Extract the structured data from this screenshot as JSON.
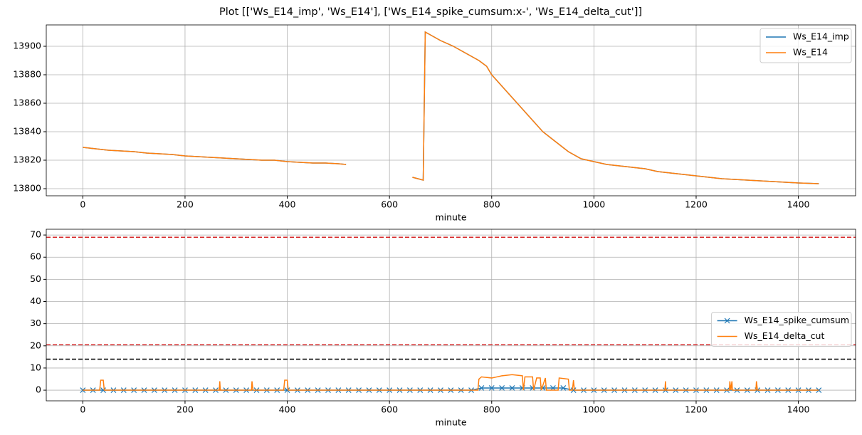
{
  "title": "Plot [['Ws_E14_imp', 'Ws_E14'], ['Ws_E14_spike_cumsum:x-', 'Ws_E14_delta_cut']]",
  "chart_data": [
    {
      "type": "line",
      "xlabel": "minute",
      "xlim": [
        -71.5,
        1512
      ],
      "xticks": [
        0,
        200,
        400,
        600,
        800,
        1000,
        1200,
        1400
      ],
      "ylim": [
        13795,
        13915
      ],
      "yticks": [
        13800,
        13820,
        13840,
        13860,
        13880,
        13900
      ],
      "grid": true,
      "legend": "upper right",
      "series": [
        {
          "name": "Ws_E14_imp",
          "color": "#1f77b4",
          "x": [
            0,
            25,
            50,
            75,
            100,
            125,
            150,
            175,
            200,
            225,
            250,
            275,
            300,
            325,
            350,
            375,
            400,
            425,
            450,
            475,
            500,
            515,
            580,
            645,
            666,
            670,
            700,
            725,
            750,
            775,
            790,
            800,
            825,
            850,
            875,
            900,
            925,
            950,
            975,
            1000,
            1025,
            1050,
            1075,
            1100,
            1125,
            1150,
            1175,
            1200,
            1225,
            1250,
            1275,
            1300,
            1325,
            1350,
            1375,
            1400,
            1440
          ],
          "values": [
            13829,
            13828,
            13827,
            13826.5,
            13826,
            13825,
            13824.5,
            13824,
            13823,
            13822.5,
            13822,
            13821.5,
            13821,
            13820.5,
            13820,
            13820,
            13819,
            13818.5,
            13818,
            13818,
            13817.5,
            13817,
            null,
            13808,
            13806,
            13910,
            13904,
            13900,
            13895,
            13890,
            13886,
            13880,
            13870,
            13860,
            13850,
            13840,
            13833,
            13826,
            13821,
            13819,
            13817,
            13816,
            13815,
            13814,
            13812,
            13811,
            13810,
            13809,
            13808,
            13807,
            13806.5,
            13806,
            13805.5,
            13805,
            13804.5,
            13804,
            13803.5
          ]
        },
        {
          "name": "Ws_E14",
          "color": "#ff7f0e",
          "x": [
            0,
            25,
            50,
            75,
            100,
            125,
            150,
            175,
            200,
            225,
            250,
            275,
            300,
            325,
            350,
            375,
            400,
            425,
            450,
            475,
            500,
            515,
            580,
            645,
            666,
            670,
            700,
            725,
            750,
            775,
            790,
            800,
            825,
            850,
            875,
            900,
            925,
            950,
            975,
            1000,
            1025,
            1050,
            1075,
            1100,
            1125,
            1150,
            1175,
            1200,
            1225,
            1250,
            1275,
            1300,
            1325,
            1350,
            1375,
            1400,
            1440
          ],
          "values": [
            13829,
            13828,
            13827,
            13826.5,
            13826,
            13825,
            13824.5,
            13824,
            13823,
            13822.5,
            13822,
            13821.5,
            13821,
            13820.5,
            13820,
            13820,
            13819,
            13818.5,
            13818,
            13818,
            13817.5,
            13817,
            null,
            13808,
            13806,
            13910,
            13904,
            13900,
            13895,
            13890,
            13886,
            13880,
            13870,
            13860,
            13850,
            13840,
            13833,
            13826,
            13821,
            13819,
            13817,
            13816,
            13815,
            13814,
            13812,
            13811,
            13810,
            13809,
            13808,
            13807,
            13806.5,
            13806,
            13805.5,
            13805,
            13804.5,
            13804,
            13803.5
          ]
        }
      ]
    },
    {
      "type": "line",
      "xlabel": "minute",
      "xlim": [
        -71.5,
        1512
      ],
      "xticks": [
        0,
        200,
        400,
        600,
        800,
        1000,
        1200,
        1400
      ],
      "ylim": [
        -4.8,
        72.6
      ],
      "yticks": [
        0,
        10,
        20,
        30,
        40,
        50,
        60,
        70
      ],
      "grid": true,
      "legend": "center right",
      "hlines": [
        {
          "value": 69,
          "color": "#d62728"
        },
        {
          "value": 20.5,
          "color": "#d62728"
        },
        {
          "value": 14,
          "color": "#000000"
        }
      ],
      "series": [
        {
          "name": "Ws_E14_spike_cumsum",
          "color": "#1f77b4",
          "marker": "x",
          "x": [
            0,
            20,
            40,
            60,
            80,
            100,
            120,
            140,
            160,
            180,
            200,
            220,
            240,
            260,
            280,
            300,
            320,
            340,
            360,
            380,
            400,
            420,
            440,
            460,
            480,
            500,
            520,
            540,
            560,
            580,
            600,
            620,
            640,
            660,
            680,
            700,
            720,
            740,
            760,
            780,
            800,
            820,
            840,
            860,
            880,
            900,
            920,
            940,
            960,
            980,
            1000,
            1020,
            1040,
            1060,
            1080,
            1100,
            1120,
            1140,
            1160,
            1180,
            1200,
            1220,
            1240,
            1260,
            1280,
            1300,
            1320,
            1340,
            1360,
            1380,
            1400,
            1420,
            1440
          ],
          "values": [
            0,
            0,
            0,
            0,
            0,
            0,
            0,
            0,
            0,
            0,
            0,
            0,
            0,
            0,
            0,
            0,
            0,
            0,
            0,
            0,
            0,
            0,
            0,
            0,
            0,
            0,
            0,
            0,
            0,
            0,
            0,
            0,
            0,
            0,
            0,
            0,
            0,
            0,
            0,
            1,
            1,
            1,
            1,
            1,
            1,
            1,
            1,
            1,
            0,
            0,
            0,
            0,
            0,
            0,
            0,
            0,
            0,
            0,
            0,
            0,
            0,
            0,
            0,
            0,
            0,
            0,
            0,
            0,
            0,
            0,
            0,
            0,
            0
          ]
        },
        {
          "name": "Ws_E14_delta_cut",
          "color": "#ff7f0e",
          "x": [
            0,
            33,
            35,
            40,
            42,
            267,
            268,
            269,
            330,
            331,
            333,
            393,
            395,
            400,
            402,
            773,
            775,
            780,
            800,
            820,
            840,
            860,
            862,
            865,
            880,
            882,
            888,
            895,
            897,
            905,
            907,
            930,
            932,
            950,
            952,
            958,
            960,
            962,
            1139,
            1140,
            1141,
            1265,
            1266,
            1268,
            1270,
            1271,
            1317,
            1318,
            1320,
            1440
          ],
          "values": [
            0,
            0,
            4.5,
            4.5,
            0,
            0,
            4,
            0,
            0,
            4,
            0,
            0,
            4.5,
            4.5,
            0,
            0,
            5,
            6,
            5.5,
            6.5,
            7,
            6.5,
            0,
            6,
            6,
            0,
            5.5,
            5.5,
            0,
            5.5,
            0,
            0,
            5.5,
            5,
            0,
            0,
            4.5,
            0,
            0,
            4,
            0,
            0,
            4,
            0,
            4,
            0,
            0,
            4,
            0,
            0
          ]
        }
      ]
    }
  ]
}
